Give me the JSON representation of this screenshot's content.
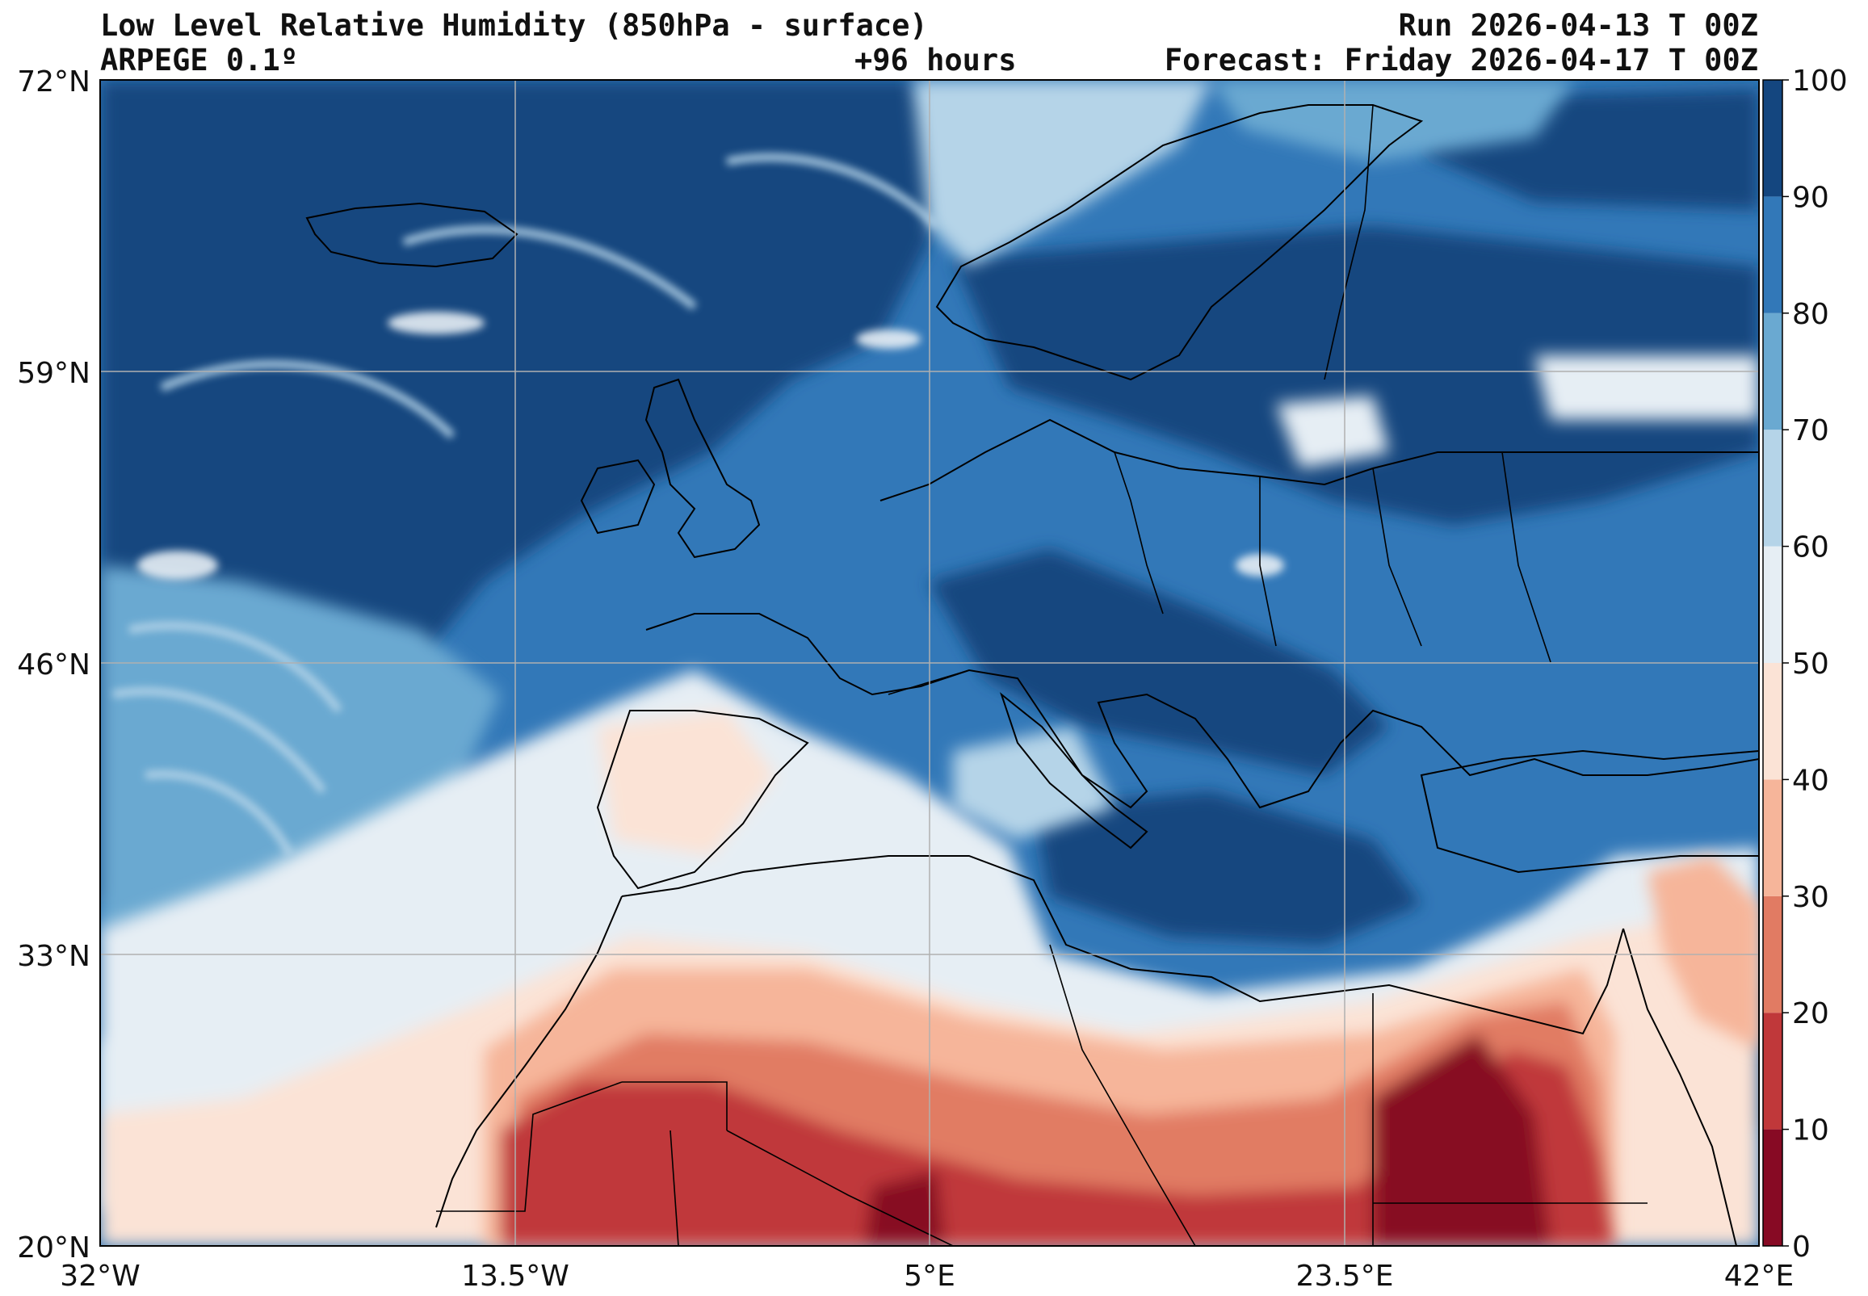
{
  "header": {
    "title": "Low Level Relative Humidity (850hPa - surface)",
    "model": "ARPEGE 0.1º",
    "lead_time": "+96 hours",
    "run": "Run 2026-04-13 T 00Z",
    "forecast": "Forecast: Friday 2026-04-17 T 00Z"
  },
  "map": {
    "lat_labels": [
      "72°N",
      "59°N",
      "46°N",
      "33°N",
      "20°N"
    ],
    "lon_labels": [
      "32°W",
      "13.5°W",
      "5°E",
      "23.5°E",
      "42°E"
    ],
    "lat_range": [
      20,
      72
    ],
    "lon_range": [
      -32,
      42
    ]
  },
  "colorbar": {
    "ticks": [
      "0",
      "10",
      "20",
      "30",
      "40",
      "50",
      "60",
      "70",
      "80",
      "90",
      "100"
    ],
    "colors": [
      "#870a24",
      "#c0383a",
      "#e17b63",
      "#f6b59a",
      "#fbe3d6",
      "#e6eef4",
      "#b5d4e8",
      "#6aa9d1",
      "#3278b8",
      "#14467f"
    ]
  },
  "palette": {
    "sea_moist": "#14467f",
    "moist": "#3278b8",
    "mid": "#6aa9d1",
    "light_blue": "#b5d4e8",
    "pale": "#e6eef4",
    "pale_pink": "#fbe3d6",
    "salmon": "#f6b59a",
    "coral": "#e17b63",
    "red": "#c0383a",
    "dark_red": "#870a24"
  }
}
